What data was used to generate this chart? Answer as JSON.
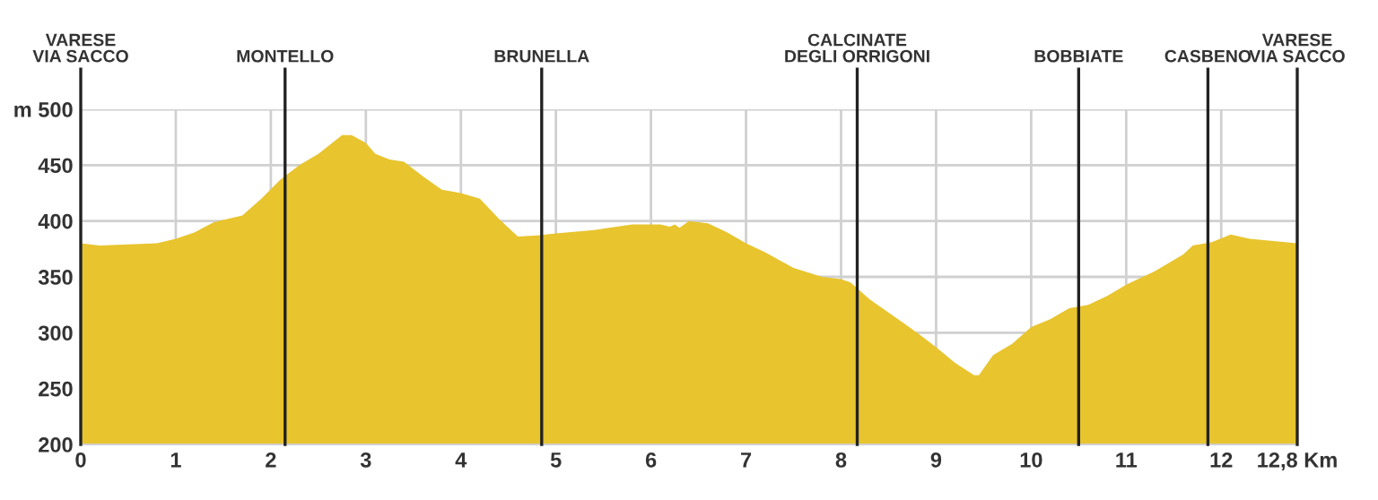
{
  "chart_data": {
    "type": "area",
    "x": [
      0,
      0.2,
      0.5,
      0.8,
      1.0,
      1.2,
      1.4,
      1.7,
      1.9,
      2.1,
      2.3,
      2.5,
      2.75,
      2.85,
      3.0,
      3.1,
      3.25,
      3.4,
      3.6,
      3.8,
      4.0,
      4.2,
      4.4,
      4.6,
      4.8,
      5.0,
      5.4,
      5.8,
      6.1,
      6.2,
      6.25,
      6.3,
      6.4,
      6.6,
      6.8,
      7.0,
      7.2,
      7.5,
      7.8,
      8.0,
      8.1,
      8.3,
      8.6,
      8.8,
      9.0,
      9.2,
      9.4,
      9.45,
      9.6,
      9.8,
      10.0,
      10.2,
      10.4,
      10.6,
      10.8,
      11.0,
      11.3,
      11.6,
      11.7,
      11.9,
      12.1,
      12.3,
      12.8
    ],
    "series": [
      {
        "color": "#e8c42e",
        "values": [
          380,
          378,
          379,
          380,
          384,
          390,
          399,
          405,
          420,
          437,
          450,
          460,
          477,
          477,
          470,
          460,
          455,
          453,
          440,
          428,
          425,
          420,
          402,
          386,
          387,
          389,
          392,
          397,
          397,
          395,
          397,
          394,
          400,
          398,
          390,
          380,
          372,
          358,
          350,
          348,
          345,
          330,
          312,
          300,
          287,
          273,
          262,
          262,
          280,
          290,
          305,
          312,
          322,
          325,
          333,
          343,
          355,
          370,
          378,
          381,
          388,
          384,
          380
        ]
      }
    ],
    "xlim": [
      0,
      12.8
    ],
    "ylim": [
      200,
      500
    ],
    "xticks": [
      0,
      1,
      2,
      3,
      4,
      5,
      6,
      7,
      8,
      9,
      10,
      11,
      12,
      {
        "value": 12.8,
        "label": "12,8 Km"
      }
    ],
    "yticks": [
      200,
      250,
      300,
      350,
      400,
      450,
      {
        "value": 500,
        "label": "m 500"
      }
    ],
    "grid": true,
    "ref_lines": [
      {
        "axis": "x",
        "value": 0,
        "label": "VARESE\nVIA SACCO",
        "color": "#222222"
      },
      {
        "axis": "x",
        "value": 2.15,
        "label": "MONTELLO",
        "color": "#222222"
      },
      {
        "axis": "x",
        "value": 4.85,
        "label": "BRUNELLA",
        "color": "#222222"
      },
      {
        "axis": "x",
        "value": 8.17,
        "label": "CALCINATE\nDEGLI ORRIGONI",
        "color": "#222222"
      },
      {
        "axis": "x",
        "value": 10.5,
        "label": "BOBBIATE",
        "color": "#222222"
      },
      {
        "axis": "x",
        "value": 11.86,
        "label": "CASBENO",
        "color": "#222222"
      },
      {
        "axis": "x",
        "value": 12.8,
        "label": "VARESE\nVIA SACCO",
        "color": "#222222"
      }
    ]
  }
}
